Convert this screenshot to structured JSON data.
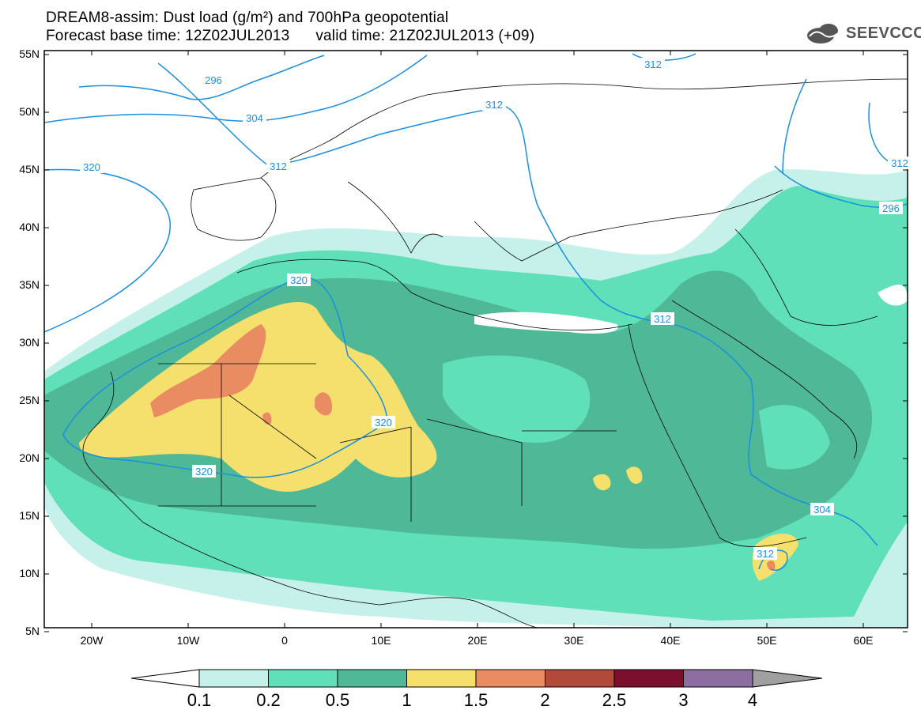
{
  "title_line1": "DREAM8-assim: Dust load (g/m²) and 700hPa geopotential",
  "title_line2": "Forecast base time: 12Z02JUL2013      valid time: 21Z02JUL2013 (+09)",
  "logo_text": "SEEVCCC",
  "lat_labels": [
    "55N",
    "50N",
    "45N",
    "40N",
    "35N",
    "30N",
    "25N",
    "20N",
    "15N",
    "10N",
    "5N"
  ],
  "lon_labels": [
    "20W",
    "10W",
    "0",
    "10E",
    "20E",
    "30E",
    "40E",
    "50E",
    "60E"
  ],
  "contour_labels": [
    "296",
    "304",
    "312",
    "320",
    "320",
    "312",
    "320",
    "320",
    "312",
    "312",
    "304",
    "296",
    "312",
    "312"
  ],
  "colorbar": {
    "labels": [
      "0.1",
      "0.2",
      "0.5",
      "1",
      "1.5",
      "2",
      "2.5",
      "3",
      "4"
    ],
    "colors": [
      "#c6f0ea",
      "#5fe0b8",
      "#4fb896",
      "#f5e06e",
      "#ea8c62",
      "#b24a3c",
      "#7d0f2e",
      "#8c6fa0"
    ]
  },
  "colors": {
    "contour": "#1a8fe0",
    "land_border": "#000000"
  }
}
